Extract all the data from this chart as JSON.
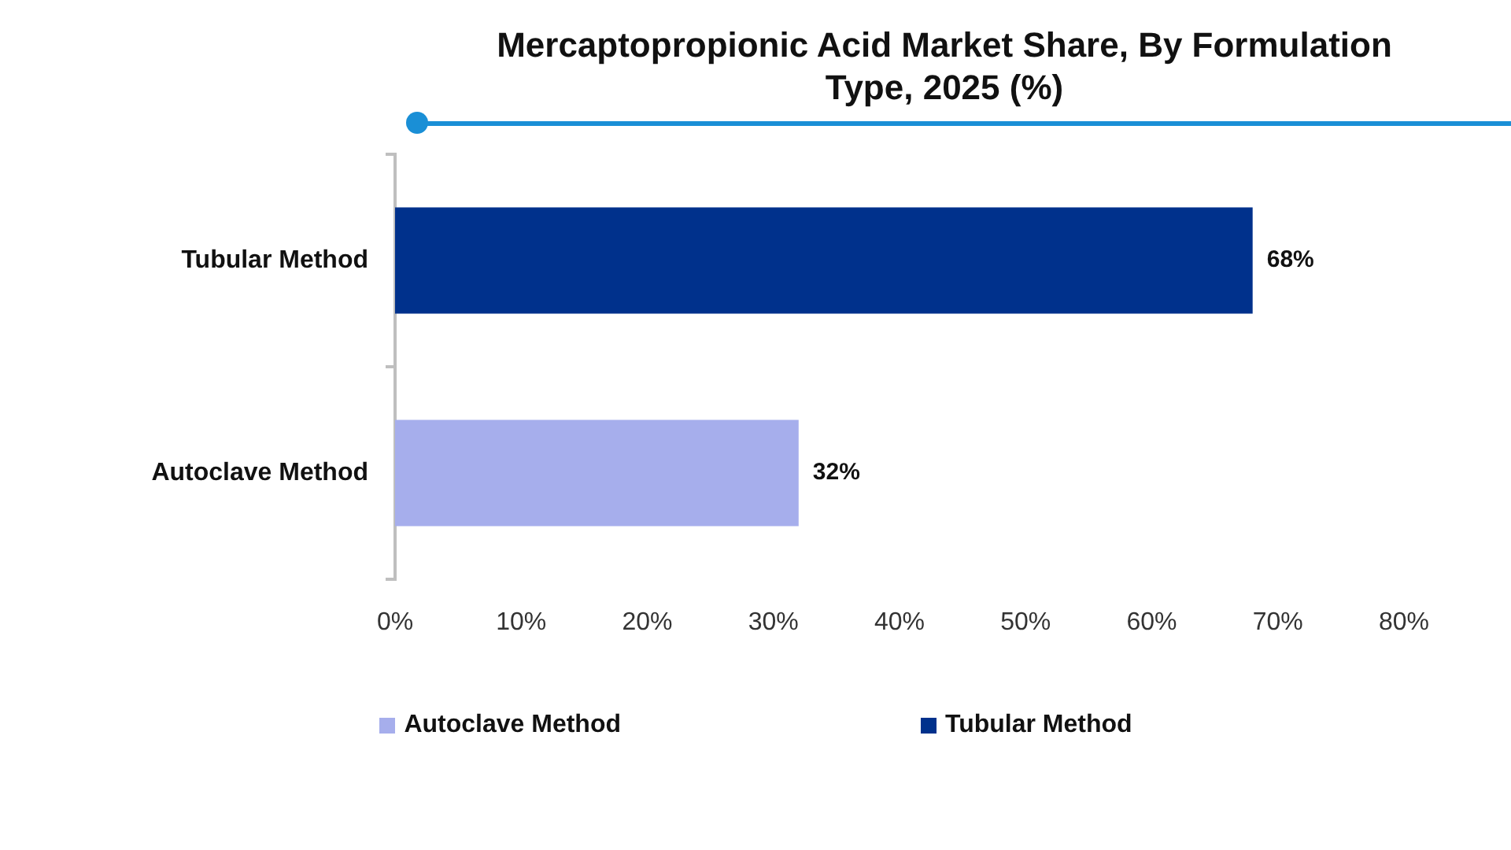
{
  "chart_data": {
    "type": "bar",
    "orientation": "horizontal",
    "title": "Mercaptopropionic Acid Market Share, By Formulation Type, 2025 (%)",
    "categories": [
      "Tubular Method",
      "Autoclave Method"
    ],
    "series": [
      {
        "name": "Autoclave Method",
        "color": "#a6aeec",
        "values": [
          null,
          32
        ],
        "value_labels": [
          null,
          "32%"
        ]
      },
      {
        "name": "Tubular Method",
        "color": "#00318c",
        "values": [
          68,
          null
        ],
        "value_labels": [
          "68%",
          null
        ]
      }
    ],
    "xlim": [
      0,
      80
    ],
    "xticks": [
      {
        "value": 0,
        "label": "0%"
      },
      {
        "value": 10,
        "label": "10%"
      },
      {
        "value": 20,
        "label": "20%"
      },
      {
        "value": 30,
        "label": "30%"
      },
      {
        "value": 40,
        "label": "40%"
      },
      {
        "value": 50,
        "label": "50%"
      },
      {
        "value": 60,
        "label": "60%"
      },
      {
        "value": 70,
        "label": "70%"
      },
      {
        "value": 80,
        "label": "80%"
      }
    ],
    "grid": false,
    "legend": "bottom"
  }
}
